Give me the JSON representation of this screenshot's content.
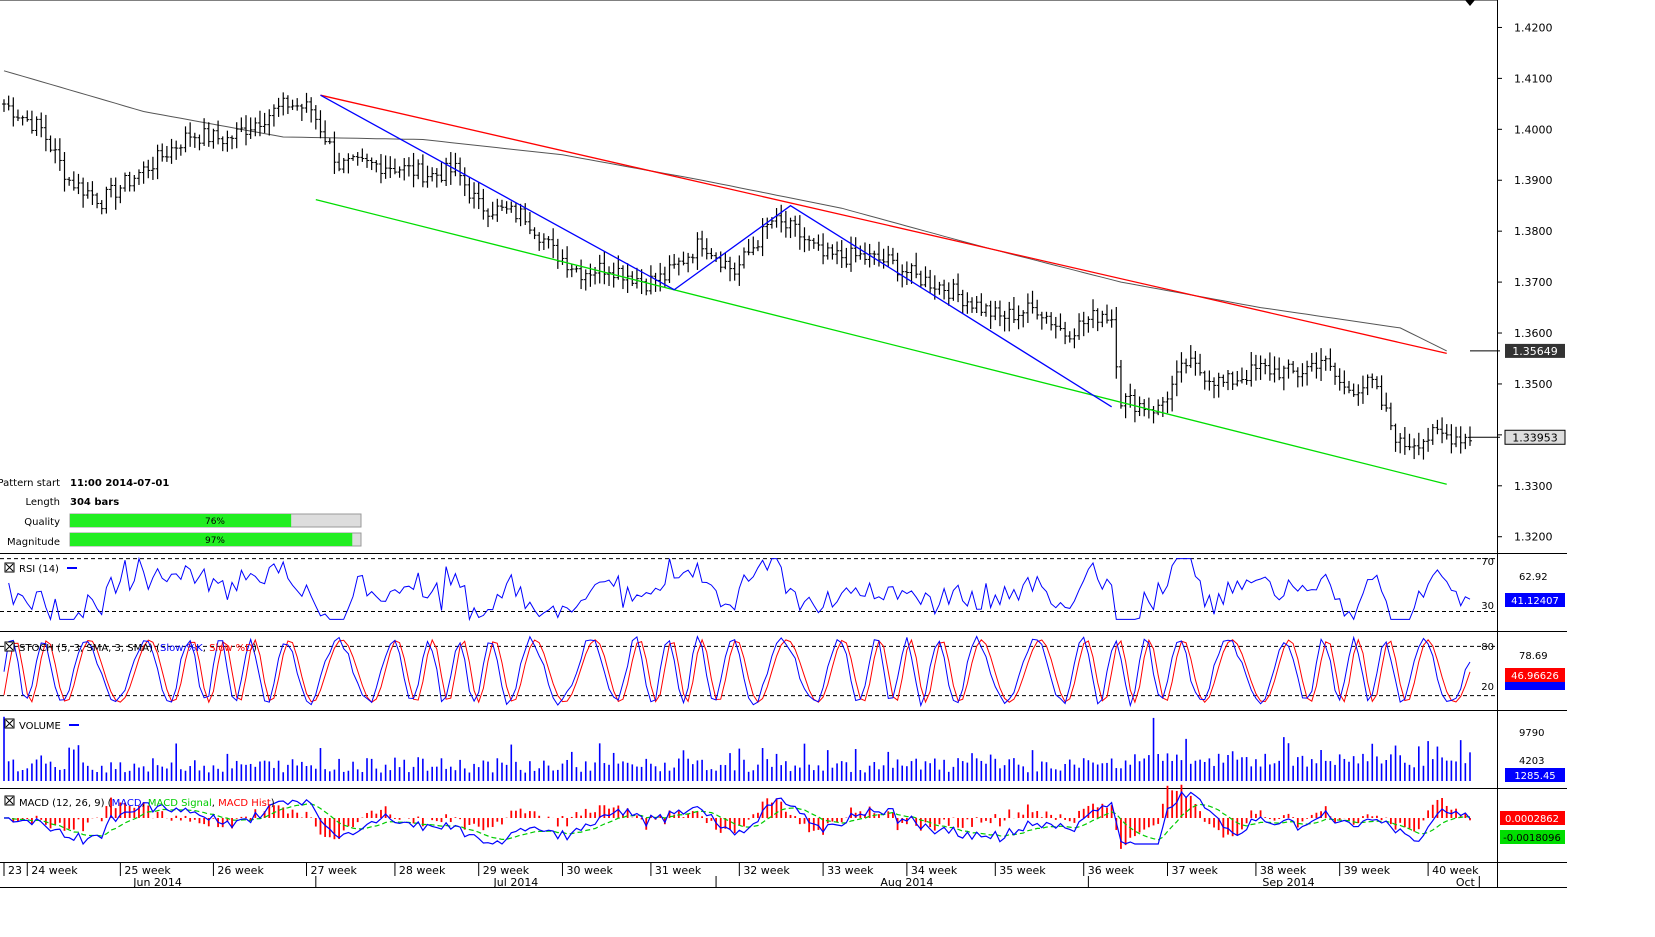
{
  "chart_data": {
    "type": "candlestick",
    "price_axis": {
      "ticks": [
        "1.4200",
        "1.4100",
        "1.4000",
        "1.3900",
        "1.3800",
        "1.3700",
        "1.3600",
        "1.3500",
        "1.3400",
        "1.3300",
        "1.3200"
      ],
      "tick_values": [
        1.42,
        1.41,
        1.4,
        1.39,
        1.38,
        1.37,
        1.36,
        1.35,
        1.34,
        1.33,
        1.32
      ],
      "ylim": [
        1.317,
        1.425
      ],
      "current_price": "1.33953",
      "current_value": 1.33953,
      "ma_label": "1.35649",
      "ma_value": 1.35649
    },
    "price_waypoints": [
      {
        "bar": 0,
        "price": 1.405
      },
      {
        "bar": 8,
        "price": 1.4
      },
      {
        "bar": 14,
        "price": 1.39
      },
      {
        "bar": 21,
        "price": 1.386
      },
      {
        "bar": 30,
        "price": 1.392
      },
      {
        "bar": 40,
        "price": 1.399
      },
      {
        "bar": 48,
        "price": 1.398
      },
      {
        "bar": 55,
        "price": 1.402
      },
      {
        "bar": 61,
        "price": 1.405
      },
      {
        "bar": 66,
        "price": 1.404
      },
      {
        "bar": 72,
        "price": 1.393
      },
      {
        "bar": 82,
        "price": 1.393
      },
      {
        "bar": 92,
        "price": 1.391
      },
      {
        "bar": 97,
        "price": 1.392
      },
      {
        "bar": 102,
        "price": 1.385
      },
      {
        "bar": 112,
        "price": 1.383
      },
      {
        "bar": 118,
        "price": 1.376
      },
      {
        "bar": 124,
        "price": 1.372
      },
      {
        "bar": 130,
        "price": 1.373
      },
      {
        "bar": 138,
        "price": 1.37
      },
      {
        "bar": 142,
        "price": 1.371
      },
      {
        "bar": 150,
        "price": 1.378
      },
      {
        "bar": 157,
        "price": 1.372
      },
      {
        "bar": 165,
        "price": 1.382
      },
      {
        "bar": 170,
        "price": 1.38
      },
      {
        "bar": 176,
        "price": 1.375
      },
      {
        "bar": 184,
        "price": 1.375
      },
      {
        "bar": 190,
        "price": 1.374
      },
      {
        "bar": 196,
        "price": 1.371
      },
      {
        "bar": 202,
        "price": 1.369
      },
      {
        "bar": 208,
        "price": 1.366
      },
      {
        "bar": 214,
        "price": 1.363
      },
      {
        "bar": 222,
        "price": 1.365
      },
      {
        "bar": 228,
        "price": 1.36
      },
      {
        "bar": 236,
        "price": 1.364
      },
      {
        "bar": 238,
        "price": 1.363
      },
      {
        "bar": 240,
        "price": 1.347
      },
      {
        "bar": 248,
        "price": 1.345
      },
      {
        "bar": 254,
        "price": 1.354
      },
      {
        "bar": 262,
        "price": 1.35
      },
      {
        "bar": 270,
        "price": 1.353
      },
      {
        "bar": 278,
        "price": 1.352
      },
      {
        "bar": 283,
        "price": 1.355
      },
      {
        "bar": 288,
        "price": 1.349
      },
      {
        "bar": 294,
        "price": 1.35
      },
      {
        "bar": 300,
        "price": 1.338
      },
      {
        "bar": 308,
        "price": 1.34
      },
      {
        "bar": 315,
        "price": 1.3395
      }
    ],
    "trendlines": [
      {
        "name": "resistance",
        "color": "#ff0000",
        "from": {
          "bar": 68,
          "price": 1.4067
        },
        "to": {
          "bar": 310,
          "price": 1.356
        }
      },
      {
        "name": "support",
        "color": "#00dd00",
        "from": {
          "bar": 67,
          "price": 1.3862
        },
        "to": {
          "bar": 310,
          "price": 1.3303
        }
      },
      {
        "name": "zigzag",
        "color": "#0000ff",
        "points": [
          {
            "bar": 68,
            "price": 1.4067
          },
          {
            "bar": 144,
            "price": 1.3685
          },
          {
            "bar": 169,
            "price": 1.385
          },
          {
            "bar": 238,
            "price": 1.3455
          }
        ]
      }
    ],
    "pattern_info": {
      "pattern_start_label": "Pattern start",
      "pattern_start_value": "11:00 2014-07-01",
      "length_label": "Length",
      "length_value": "304 bars",
      "quality_label": "Quality",
      "quality_value": "76%",
      "quality_fraction": 0.76,
      "magnitude_label": "Magnitude",
      "magnitude_value": "97%",
      "magnitude_fraction": 0.97
    },
    "indicators": {
      "rsi": {
        "title": "RSI (14)",
        "levels": [
          "70",
          "30"
        ],
        "axis_tick": "62.92",
        "current": "41.12407",
        "current_value": 41.12,
        "ylim": [
          16,
          72
        ]
      },
      "stoch": {
        "title_prefix": "STOCH (5, 3, SMA, 3, SMA) (",
        "k_label": "Slow %K",
        "sep": ", ",
        "d_label": "Slow %D",
        "title_suffix": ")",
        "levels": [
          "80",
          "20"
        ],
        "axis_tick": "78.69",
        "current": "46.96626",
        "current_value": 46.97,
        "ylim": [
          5,
          95
        ]
      },
      "volume": {
        "title": "VOLUME",
        "ticks": [
          "9790",
          "4203"
        ],
        "current": "1285.45",
        "ymax": 12000
      },
      "macd": {
        "title_prefix": "MACD (12, 26, 9) (",
        "macd_label": "MACD",
        "sep": ", ",
        "signal_label": "MACD Signal",
        "hist_label": "MACD Hist",
        "title_suffix": ")",
        "current_hist": "0.0002862",
        "current_macd": "-0.0018096"
      }
    },
    "x_axis": {
      "weeks": [
        {
          "label": "23",
          "bar": 0
        },
        {
          "label": "24 week",
          "bar": 5
        },
        {
          "label": "25 week",
          "bar": 25
        },
        {
          "label": "26 week",
          "bar": 45
        },
        {
          "label": "27 week",
          "bar": 65
        },
        {
          "label": "28 week",
          "bar": 84
        },
        {
          "label": "29 week",
          "bar": 102
        },
        {
          "label": "30 week",
          "bar": 120
        },
        {
          "label": "31 week",
          "bar": 139
        },
        {
          "label": "32 week",
          "bar": 158
        },
        {
          "label": "33 week",
          "bar": 176
        },
        {
          "label": "34 week",
          "bar": 194
        },
        {
          "label": "35 week",
          "bar": 213
        },
        {
          "label": "36 week",
          "bar": 232
        },
        {
          "label": "37 week",
          "bar": 250
        },
        {
          "label": "38 week",
          "bar": 269
        },
        {
          "label": "39 week",
          "bar": 287
        },
        {
          "label": "40 week",
          "bar": 306
        }
      ],
      "months": [
        {
          "label": "Jun 2014",
          "bar": 33
        },
        {
          "label": "Jul 2014",
          "bar": 110
        },
        {
          "label": "Aug 2014",
          "bar": 194
        },
        {
          "label": "Sep 2014",
          "bar": 276
        },
        {
          "label": "Oct",
          "bar": 314
        }
      ],
      "month_boundaries": [
        67,
        153,
        233,
        317
      ],
      "total_bars": 318
    },
    "colors": {
      "bars": "#000000",
      "rsi": "#0000ff",
      "stoch_k": "#0000ff",
      "stoch_d": "#ff0000",
      "volume": "#0000ff",
      "macd": "#0000ff",
      "signal": "#00cc00",
      "hist": "#ff0000",
      "ma": "#555555"
    }
  }
}
